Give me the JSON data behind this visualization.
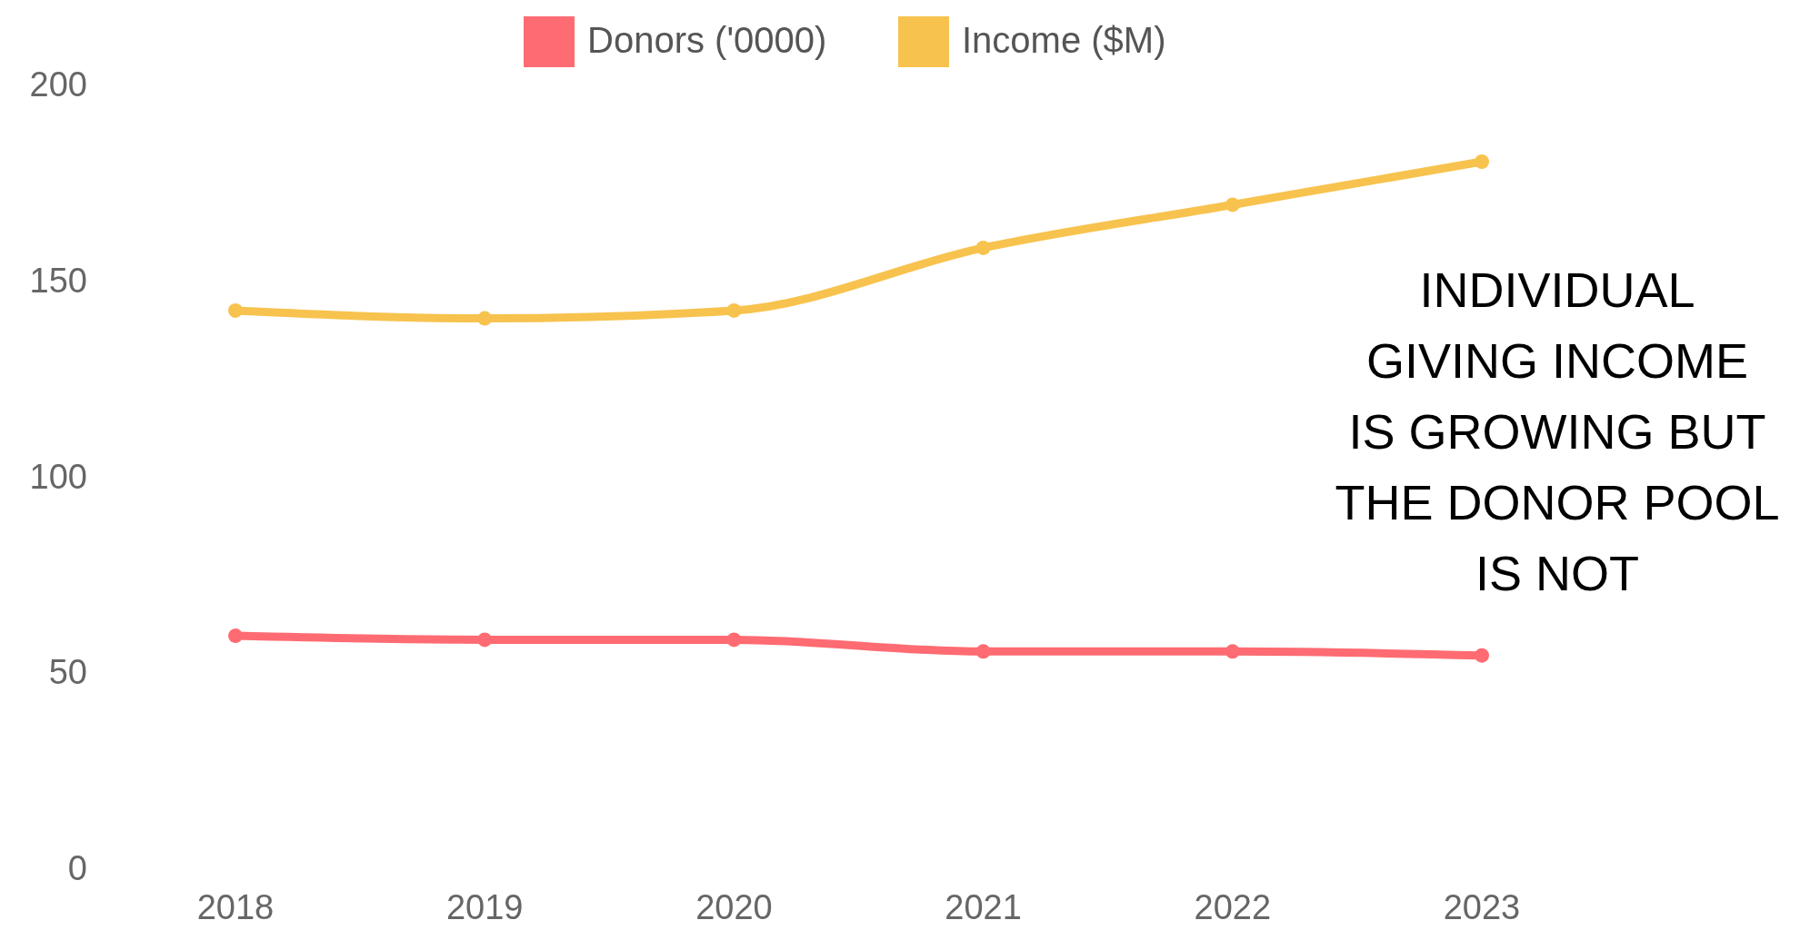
{
  "chart_data": {
    "type": "line",
    "categories": [
      "2018",
      "2019",
      "2020",
      "2021",
      "2022",
      "2023"
    ],
    "series": [
      {
        "name": "Donors ('0000)",
        "color": "#ff6b72",
        "values": [
          60,
          59,
          59,
          56,
          56,
          55
        ]
      },
      {
        "name": "Income ($M)",
        "color": "#f7c34e",
        "values": [
          143,
          141,
          143,
          159,
          170,
          181
        ]
      }
    ],
    "ylim": [
      0,
      200
    ],
    "yticks": [
      0,
      50,
      100,
      150,
      200
    ],
    "grid": false,
    "legend": "top",
    "marker": "circle",
    "line_style": "solid",
    "annotations": [
      "INDIVIDUAL GIVING INCOME IS GROWING BUT THE DONOR POOL IS NOT"
    ]
  }
}
